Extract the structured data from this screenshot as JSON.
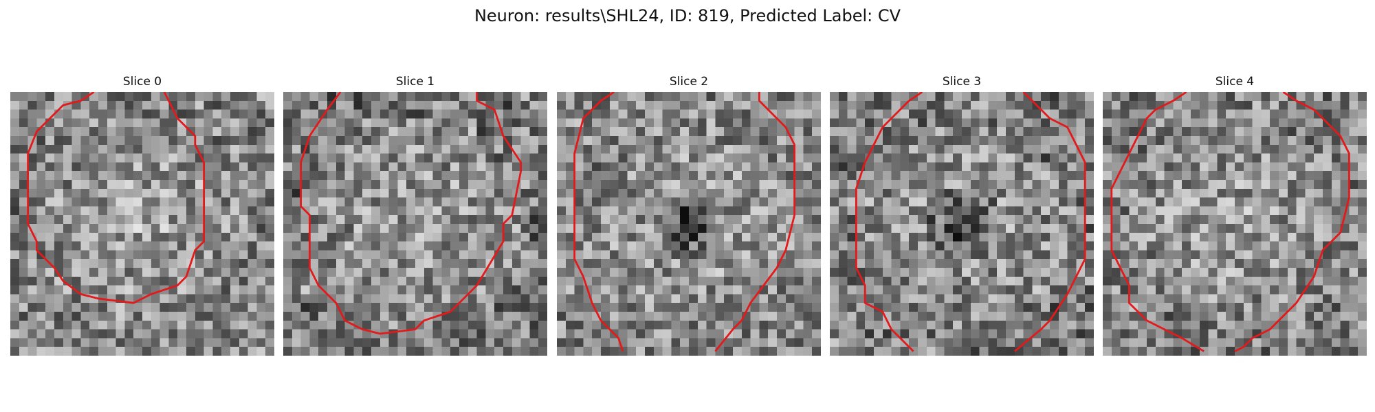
{
  "figure": {
    "title": "Neuron: results\\SHL24, ID: 819, Predicted Label: CV",
    "contour_color": "#e31a1c"
  },
  "panels": [
    {
      "title": "Slice 0",
      "dark_center": false,
      "dark_edges": 0.25,
      "bright": 0.35
    },
    {
      "title": "Slice 1",
      "dark_center": false,
      "dark_edges": 0.55,
      "bright": 0.2
    },
    {
      "title": "Slice 2",
      "dark_center": true,
      "dark_edges": 0.15,
      "bright": 0.3
    },
    {
      "title": "Slice 3",
      "dark_center": true,
      "dark_edges": 0.45,
      "bright": 0.15
    },
    {
      "title": "Slice 4",
      "dark_center": false,
      "dark_edges": 0.3,
      "bright": 0.3
    }
  ]
}
